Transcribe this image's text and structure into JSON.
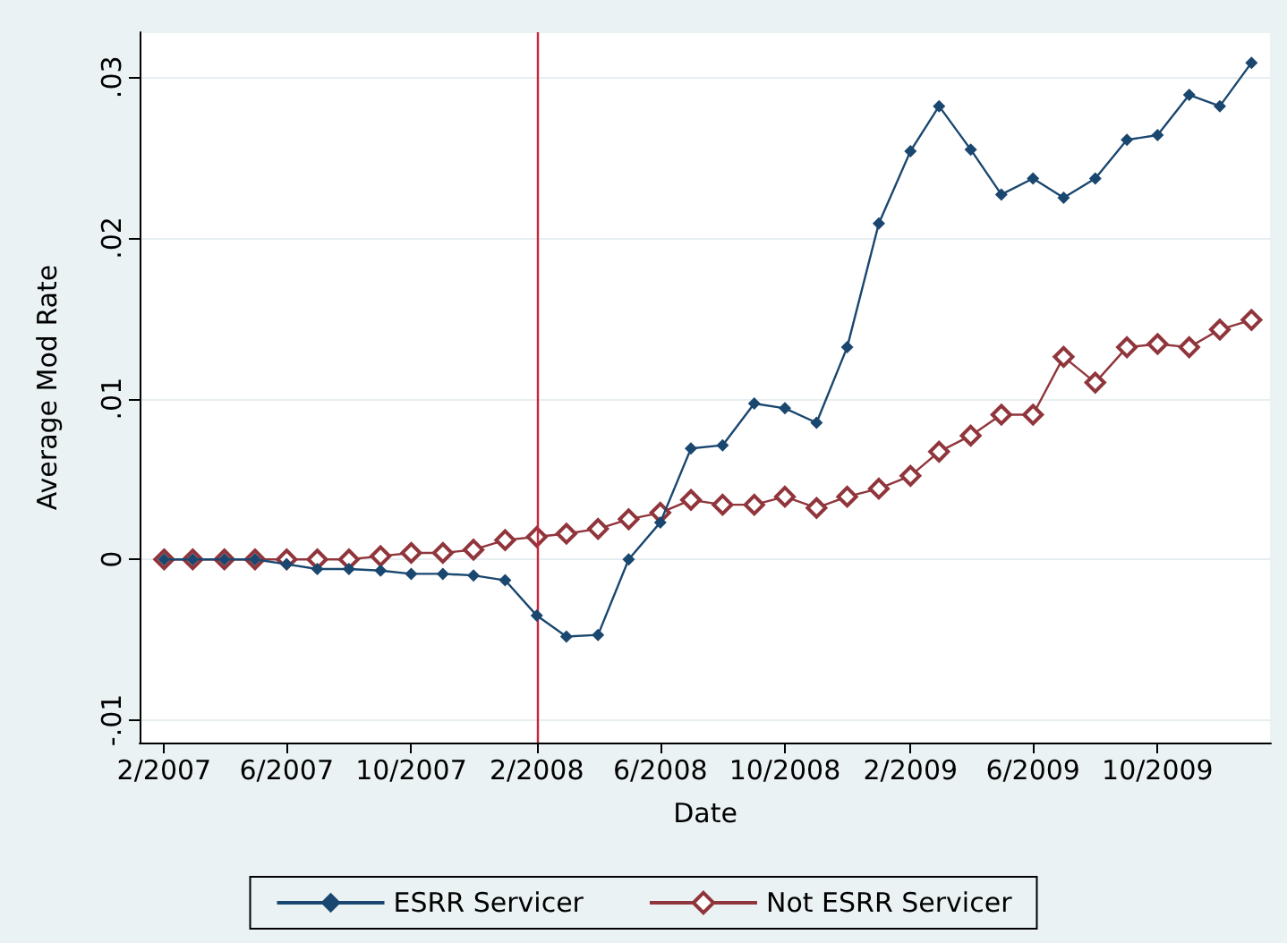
{
  "chart_data": {
    "type": "line",
    "xlabel": "Date",
    "ylabel": "Average Mod Rate",
    "x": [
      "2007-02",
      "2007-03",
      "2007-04",
      "2007-05",
      "2007-06",
      "2007-07",
      "2007-08",
      "2007-09",
      "2007-10",
      "2007-11",
      "2007-12",
      "2008-01",
      "2008-02",
      "2008-03",
      "2008-04",
      "2008-05",
      "2008-06",
      "2008-07",
      "2008-08",
      "2008-09",
      "2008-10",
      "2008-11",
      "2008-12",
      "2009-01",
      "2009-02",
      "2009-03",
      "2009-04",
      "2009-05",
      "2009-06",
      "2009-07",
      "2009-08",
      "2009-09",
      "2009-10",
      "2009-11",
      "2009-12",
      "2010-01"
    ],
    "series": [
      {
        "name": "ESRR Servicer",
        "color": "#1a476f",
        "values": [
          0,
          0,
          0,
          0,
          -0.0003,
          -0.0006,
          -0.0006,
          -0.0007,
          -0.0009,
          -0.0009,
          -0.001,
          -0.0013,
          -0.0035,
          -0.0048,
          -0.0047,
          0,
          0.0023,
          0.0069,
          0.0071,
          0.0097,
          0.0094,
          0.0085,
          0.0132,
          0.0209,
          0.0254,
          0.0282,
          0.0255,
          0.0227,
          0.0237,
          0.0225,
          0.0237,
          0.0261,
          0.0264,
          0.0289,
          0.0282,
          0.0309
        ]
      },
      {
        "name": "Not ESRR Servicer",
        "color": "#90353b",
        "values": [
          0,
          0,
          0,
          0,
          0,
          0,
          0,
          0.0002,
          0.0004,
          0.0004,
          0.0006,
          0.0012,
          0.0014,
          0.0016,
          0.0019,
          0.0025,
          0.0029,
          0.0037,
          0.0034,
          0.0034,
          0.0039,
          0.0032,
          0.0039,
          0.0044,
          0.0052,
          0.0067,
          0.0077,
          0.009,
          0.009,
          0.0126,
          0.011,
          0.0132,
          0.0134,
          0.0132,
          0.0143,
          0.0149
        ]
      }
    ],
    "xlim": [
      "2007-01-08",
      "2010-01-20"
    ],
    "xticks": [
      {
        "value": "2007-02",
        "label": "2/2007"
      },
      {
        "value": "2007-06",
        "label": "6/2007"
      },
      {
        "value": "2007-10",
        "label": "10/2007"
      },
      {
        "value": "2008-02",
        "label": "2/2008"
      },
      {
        "value": "2008-06",
        "label": "6/2008"
      },
      {
        "value": "2008-10",
        "label": "10/2008"
      },
      {
        "value": "2009-02",
        "label": "2/2009"
      },
      {
        "value": "2009-06",
        "label": "6/2009"
      },
      {
        "value": "2009-10",
        "label": "10/2009"
      }
    ],
    "ylim": [
      -0.0114,
      0.0328
    ],
    "yticks": [
      {
        "value": -0.01,
        "label": "-.01"
      },
      {
        "value": 0,
        "label": "0"
      },
      {
        "value": 0.01,
        "label": ".01"
      },
      {
        "value": 0.02,
        "label": ".02"
      },
      {
        "value": 0.03,
        "label": ".03"
      }
    ],
    "ref_lines": [
      {
        "axis": "x",
        "value": "2008-02",
        "color": "#c8243c"
      }
    ],
    "grid": "y",
    "legend": "bottom",
    "marker": "diamond",
    "line_style": "solid"
  }
}
